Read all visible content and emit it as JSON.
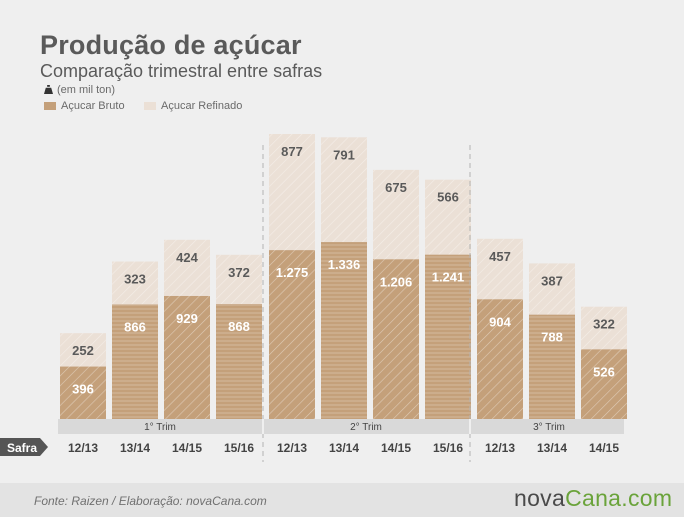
{
  "header": {
    "title": "Produção de açúcar",
    "subtitle": "Comparação trimestral entre safras",
    "unit": "(em mil ton)"
  },
  "legend": {
    "bruto_label": "Açucar Bruto",
    "refinado_label": "Açucar Refinado"
  },
  "footer": {
    "source": "Fonte:  Raizen / Elaboração:  novaCana.com",
    "logo_nova": "nova",
    "logo_cana": "Cana",
    "logo_com": ".com"
  },
  "colors": {
    "bruto": "#c4a07a",
    "refinado": "#ebe0d6",
    "hatch": "#ffffff",
    "background": "#efefef",
    "axis_label": "#444444",
    "quarter_bar": "#d9d9d9",
    "safra_tag": "#555555"
  },
  "chart_data": {
    "type": "bar",
    "stacked": true,
    "ylabel": "(em mil ton)",
    "row_label": "Safra",
    "groups": [
      {
        "label": "1° Trim",
        "categories": [
          "12/13",
          "13/14",
          "14/15",
          "15/16"
        ],
        "series": [
          {
            "name": "Açucar Bruto",
            "values": [
              396,
              866,
              929,
              868
            ]
          },
          {
            "name": "Açucar Refinado",
            "values": [
              252,
              323,
              424,
              372
            ]
          }
        ]
      },
      {
        "label": "2° Trim",
        "categories": [
          "12/13",
          "13/14",
          "14/15",
          "15/16"
        ],
        "series": [
          {
            "name": "Açucar Bruto",
            "values": [
              1275,
              1336,
              1206,
              1241
            ]
          },
          {
            "name": "Açucar Refinado",
            "values": [
              877,
              791,
              675,
              566
            ]
          }
        ]
      },
      {
        "label": "3° Trim",
        "categories": [
          "12/13",
          "13/14",
          "14/15"
        ],
        "series": [
          {
            "name": "Açucar Bruto",
            "values": [
              904,
              788,
              526
            ]
          },
          {
            "name": "Açucar Refinado",
            "values": [
              457,
              387,
              322
            ]
          }
        ]
      }
    ],
    "value_labels": {
      "bruto": [
        [
          "396",
          "866",
          "929",
          "868"
        ],
        [
          "1.275",
          "1.336",
          "1.206",
          "1.241"
        ],
        [
          "904",
          "788",
          "526"
        ]
      ],
      "refinado": [
        [
          "252",
          "323",
          "424",
          "372"
        ],
        [
          "877",
          "791",
          "675",
          "566"
        ],
        [
          "457",
          "387",
          "322"
        ]
      ]
    },
    "ylim": [
      0,
      2152
    ],
    "grid": false
  }
}
